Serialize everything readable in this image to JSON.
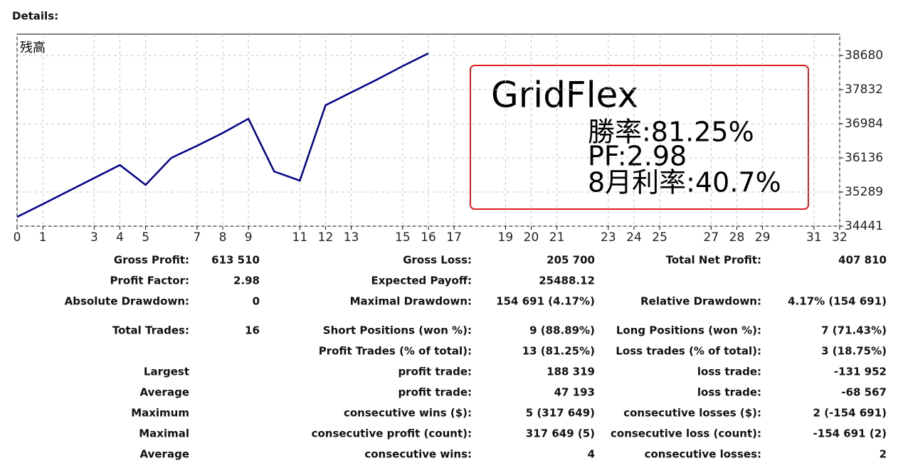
{
  "header": {
    "title": "Details:"
  },
  "chart_data": {
    "type": "line",
    "label": "残高",
    "x": [
      0,
      1,
      2,
      3,
      4,
      5,
      6,
      7,
      8,
      9,
      10,
      11,
      12,
      13,
      14,
      15,
      16
    ],
    "series": [
      {
        "name": "残高",
        "color": "#00008b",
        "values": [
          34671,
          34989,
          35313,
          35636,
          35960,
          35466,
          36137,
          36437,
          36755,
          37109,
          35801,
          35572,
          37444,
          37763,
          38081,
          38416,
          38734
        ]
      }
    ],
    "xlim": [
      0,
      32
    ],
    "xticks": [
      0,
      1,
      3,
      4,
      5,
      7,
      8,
      9,
      11,
      12,
      13,
      15,
      16,
      17,
      19,
      20,
      21,
      23,
      24,
      25,
      27,
      28,
      29,
      31,
      32
    ],
    "ylim": [
      34441,
      39210
    ],
    "yticks": [
      34441,
      35289,
      36136,
      36984,
      37832,
      38680
    ],
    "grid": true
  },
  "annotation": {
    "title": "GridFlex",
    "lines": [
      "勝率:81.25%",
      "PF:2.98",
      "8月利率:40.7%"
    ]
  },
  "stats": {
    "rows": [
      [
        "Gross Profit:",
        "613 510",
        "Gross Loss:",
        "205 700",
        "Total Net Profit:",
        "407 810"
      ],
      [
        "Profit Factor:",
        "2.98",
        "Expected Payoff:",
        "25488.12",
        null,
        null
      ],
      [
        "Absolute Drawdown:",
        "0",
        "Maximal Drawdown:",
        "154 691 (4.17%)",
        "Relative Drawdown:",
        "4.17% (154 691)"
      ],
      [
        "Total Trades:",
        "16",
        "Short Positions (won %):",
        "9 (88.89%)",
        "Long Positions (won %):",
        "7 (71.43%)"
      ],
      [
        null,
        null,
        "Profit Trades (% of total):",
        "13 (81.25%)",
        "Loss trades (% of total):",
        "3 (18.75%)"
      ],
      [
        "Largest",
        null,
        "profit trade:",
        "188 319",
        "loss trade:",
        "-131 952"
      ],
      [
        "Average",
        null,
        "profit trade:",
        "47 193",
        "loss trade:",
        "-68 567"
      ],
      [
        "Maximum",
        null,
        "consecutive wins ($):",
        "5 (317 649)",
        "consecutive losses ($):",
        "2 (-154 691)"
      ],
      [
        "Maximal",
        null,
        "consecutive profit (count):",
        "317 649 (5)",
        "consecutive loss (count):",
        "-154 691 (2)"
      ],
      [
        "Average",
        null,
        "consecutive wins:",
        "4",
        "consecutive losses:",
        "2"
      ]
    ]
  }
}
